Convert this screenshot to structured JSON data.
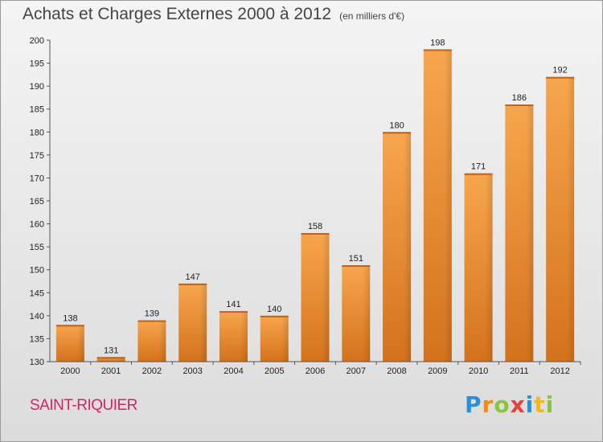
{
  "header": {
    "title": "Achats et Charges Externes 2000 à 2012",
    "unit": "(en milliers d'€)"
  },
  "footer": {
    "commune": "SAINT-RIQUIER",
    "logo_text": "Proxiti"
  },
  "colors": {
    "bar_light": "#f7a64e",
    "bar_dark": "#d4721c",
    "commune": "#cc2566"
  },
  "chart_data": {
    "type": "bar",
    "title": "Achats et Charges Externes 2000 à 2012",
    "subtitle": "(en milliers d'€)",
    "categories": [
      "2000",
      "2001",
      "2002",
      "2003",
      "2004",
      "2005",
      "2006",
      "2007",
      "2008",
      "2009",
      "2010",
      "2011",
      "2012"
    ],
    "values": [
      138,
      131,
      139,
      147,
      141,
      140,
      158,
      151,
      180,
      198,
      171,
      186,
      192
    ],
    "ylim": [
      130,
      200
    ],
    "yticks": [
      130,
      135,
      140,
      145,
      150,
      155,
      160,
      165,
      170,
      175,
      180,
      185,
      190,
      195,
      200
    ],
    "grid": false,
    "legend": "none"
  }
}
